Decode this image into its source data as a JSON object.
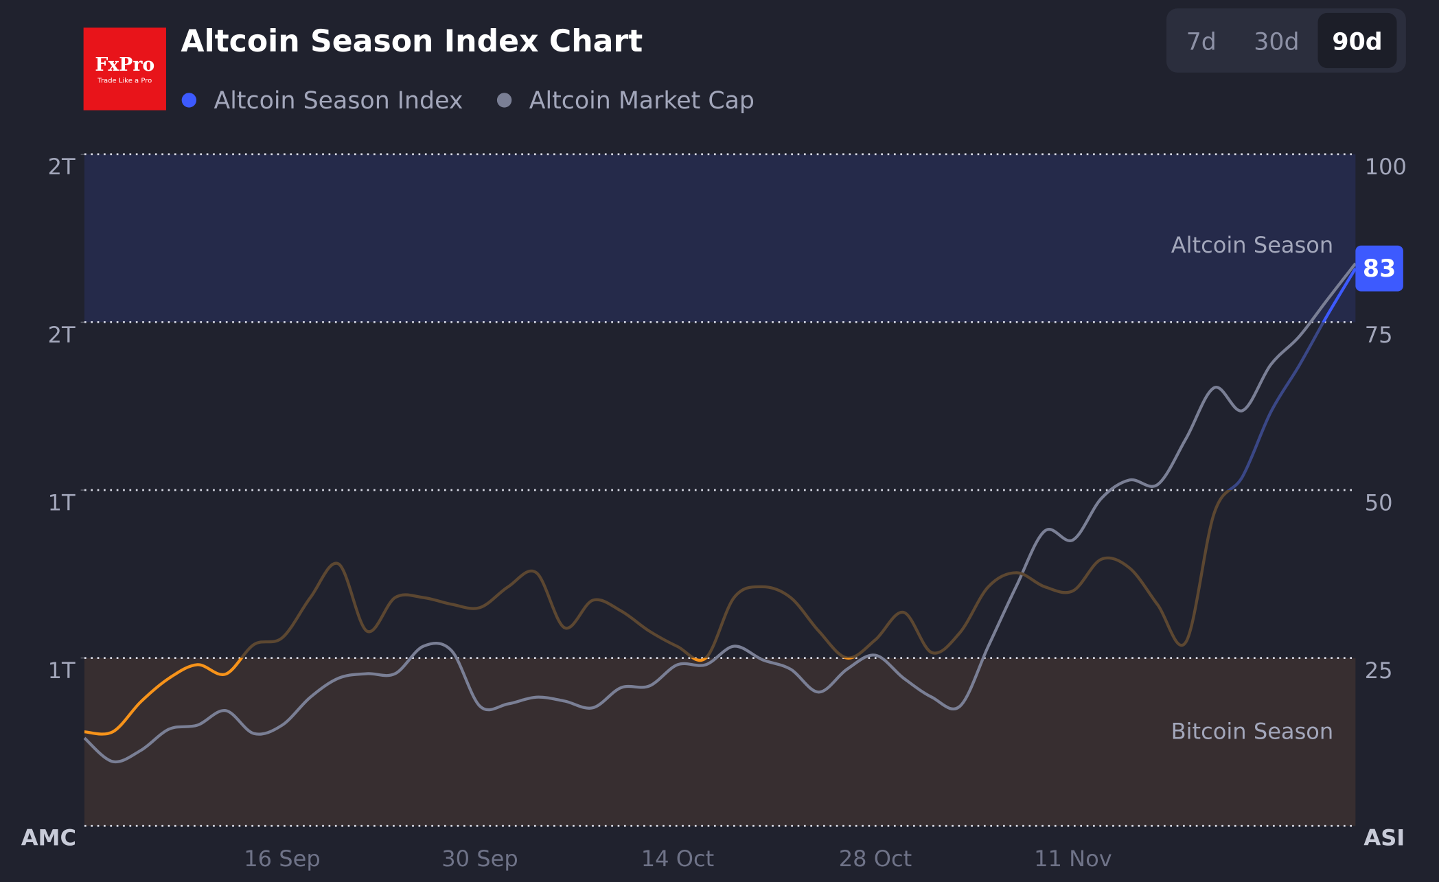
{
  "logo": {
    "name": "FxPro",
    "tagline": "Trade Like a Pro",
    "color": "#e8141a"
  },
  "range_buttons": {
    "options": [
      "7d",
      "30d",
      "90d"
    ],
    "active": "90d"
  },
  "chart_data": {
    "type": "line",
    "title": "Altcoin Season Index Chart",
    "y_label": "AMC",
    "y2_label": "ASI",
    "categories": [
      null,
      null,
      null,
      null,
      null,
      null,
      null,
      "16 Sep",
      null,
      null,
      null,
      null,
      null,
      null,
      "30 Sep",
      null,
      null,
      null,
      null,
      null,
      null,
      "14 Oct",
      null,
      null,
      null,
      null,
      null,
      null,
      "28 Oct",
      null,
      null,
      null,
      null,
      null,
      null,
      "11 Nov",
      null,
      null,
      null,
      null,
      null,
      null,
      null,
      null,
      null,
      null
    ],
    "series": [
      {
        "name": "Altcoin Season Index",
        "axis": "y2",
        "color": "#3d5afe",
        "zone_colors": [
          "#f7931a",
          "#5c4731",
          "#3a4786",
          "#3d5afe"
        ],
        "values": [
          14,
          14,
          18.5,
          22,
          24,
          22.6,
          27,
          28,
          34,
          39,
          29,
          34,
          34,
          33,
          32.5,
          35.6,
          37.7,
          29.5,
          33.6,
          32,
          29,
          26.7,
          25,
          34,
          35.6,
          34,
          29,
          25,
          27.7,
          31.8,
          25.8,
          28.8,
          35.6,
          37.7,
          35.6,
          35,
          39.7,
          38.4,
          32.9,
          27.4,
          46.6,
          52,
          61.6,
          68.5,
          76,
          83
        ]
      },
      {
        "name": "Altcoin Market Cap",
        "color": "#7a7f95",
        "values": [
          0.757,
          0.715,
          0.735,
          0.773,
          0.78,
          0.806,
          0.765,
          0.78,
          0.83,
          0.864,
          0.872,
          0.872,
          0.921,
          0.913,
          0.814,
          0.818,
          0.83,
          0.823,
          0.811,
          0.847,
          0.85,
          0.888,
          0.888,
          0.921,
          0.897,
          0.88,
          0.839,
          0.88,
          0.905,
          0.864,
          0.83,
          0.814,
          0.921,
          1.029,
          1.127,
          1.111,
          1.185,
          1.218,
          1.21,
          1.292,
          1.383,
          1.342,
          1.424,
          1.474,
          1.54,
          1.605
        ]
      }
    ],
    "ylim": [
      0.6,
      1.8
    ],
    "yticks": [
      {
        "value": 0.9,
        "label": "1T"
      },
      {
        "value": 1.2,
        "label": "1T"
      },
      {
        "value": 1.5,
        "label": "2T"
      },
      {
        "value": 1.8,
        "label": "2T"
      }
    ],
    "y2lim": [
      0,
      100
    ],
    "y2ticks": [
      25,
      50,
      75,
      100
    ],
    "bands": [
      {
        "label": "Altcoin Season",
        "from": 75,
        "to": 100,
        "color": "#252a4a"
      },
      {
        "label": "Bitcoin Season",
        "from": 0,
        "to": 25,
        "color": "#372e30"
      }
    ],
    "grid": true
  }
}
